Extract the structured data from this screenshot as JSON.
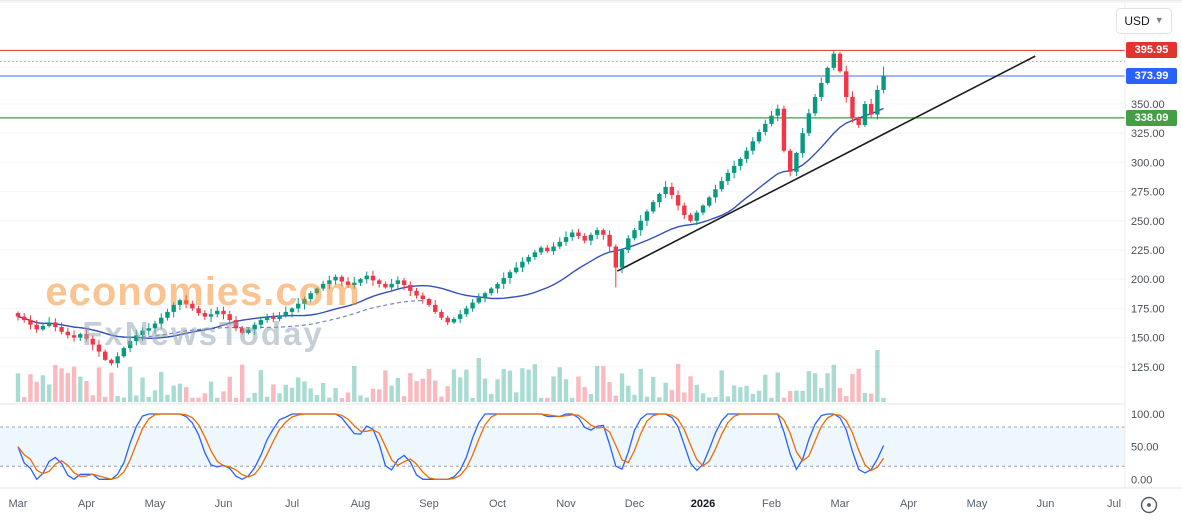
{
  "header": {
    "currency_label": "USD"
  },
  "watermark": {
    "line1": "economies.com",
    "line2": "FxNewsToday"
  },
  "price_axis": {
    "ticks": [
      350,
      325,
      300,
      275,
      250,
      225,
      200,
      175,
      150,
      125
    ],
    "badges": [
      {
        "name": "resistance",
        "label": "395.95",
        "value": 395.95,
        "color": "#e0342f"
      },
      {
        "name": "last-price",
        "label": "373.99",
        "value": 373.99,
        "color": "#2962ff"
      },
      {
        "name": "support",
        "label": "338.09",
        "value": 338.09,
        "color": "#449e48"
      }
    ]
  },
  "stoch_axis": {
    "ticks": [
      100,
      50,
      0
    ]
  },
  "time_axis": {
    "labels": [
      "Mar",
      "Apr",
      "May",
      "Jun",
      "Jul",
      "Aug",
      "Sep",
      "Oct",
      "Nov",
      "Dec",
      "2026",
      "Feb",
      "Mar",
      "Apr",
      "May",
      "Jun",
      "Jul"
    ],
    "emphasized": "2026"
  },
  "chart_data": {
    "type": "candlestick",
    "currency": "USD",
    "panes": [
      "price+volume",
      "stochastic"
    ],
    "price_levels": {
      "resistance": 395.95,
      "last": 373.99,
      "support": 338.09,
      "dotted": 386.5
    },
    "candles_per_month": 11,
    "closes": [
      168,
      165,
      161,
      157,
      160,
      163,
      159,
      155,
      152,
      150,
      153,
      149,
      144,
      138,
      131,
      128,
      134,
      141,
      147,
      152,
      156,
      158,
      162,
      167,
      172,
      178,
      182,
      179,
      175,
      171,
      168,
      170,
      173,
      170,
      165,
      158,
      154,
      157,
      161,
      165,
      168,
      166,
      169,
      172,
      175,
      179,
      183,
      188,
      192,
      196,
      199,
      202,
      198,
      195,
      197,
      200,
      203,
      199,
      196,
      193,
      196,
      199,
      195,
      190,
      186,
      183,
      178,
      172,
      167,
      163,
      166,
      170,
      175,
      180,
      184,
      188,
      192,
      196,
      201,
      206,
      210,
      215,
      219,
      223,
      227,
      224,
      228,
      232,
      236,
      240,
      237,
      233,
      238,
      242,
      238,
      228,
      210,
      225,
      235,
      242,
      250,
      258,
      266,
      273,
      279,
      272,
      263,
      255,
      250,
      257,
      263,
      270,
      277,
      284,
      291,
      297,
      303,
      310,
      318,
      326,
      333,
      340,
      346,
      310,
      292,
      308,
      325,
      342,
      356,
      368,
      381,
      393,
      378,
      356,
      338,
      332,
      350,
      341,
      362,
      373.99
    ],
    "ohlc_overrides": {
      "15": {
        "low": 126
      },
      "96": {
        "low": 193
      },
      "124": {
        "low": 288
      },
      "131": {
        "high": 395.95
      },
      "135": {
        "low": 329.5
      },
      "139": {
        "high": 382
      }
    },
    "volume_overrides": {
      "74": 44,
      "93": 36,
      "106": 38,
      "138": 52
    },
    "volume_note": "volume bars shown without numeric scale",
    "trendline": {
      "from": {
        "month_index": 8.75,
        "price": 207
      },
      "to": {
        "month_index": 14.85,
        "price": 391
      }
    },
    "moving_averages": [
      {
        "period": 20,
        "style": "solid"
      },
      {
        "period": 40,
        "style": "dashed",
        "shown_through_index": 65
      }
    ],
    "stochastic": {
      "k_period": 8,
      "smooth": 3,
      "overbought": 80,
      "oversold": 20,
      "range": [
        0,
        100
      ]
    },
    "y_axis": {
      "visible_min": 96,
      "visible_max": 432,
      "tick_step": 25
    },
    "colors": {
      "up": "#089981",
      "down": "#f23645",
      "volume_up": "rgba(8,153,129,0.35)",
      "volume_down": "rgba(242,54,69,0.35)",
      "ma": "#2a46b8",
      "ma2": "#5c6bc0",
      "trend": "#1b1b1b",
      "stoch_k": "#2962ff",
      "stoch_d": "#ef6c00",
      "resistance": "#e0342f",
      "support": "#449e48",
      "last": "#2962ff",
      "dotted": "#f59120",
      "band_fill": "rgba(33,150,243,0.08)",
      "band_edge": "#787b86"
    }
  }
}
